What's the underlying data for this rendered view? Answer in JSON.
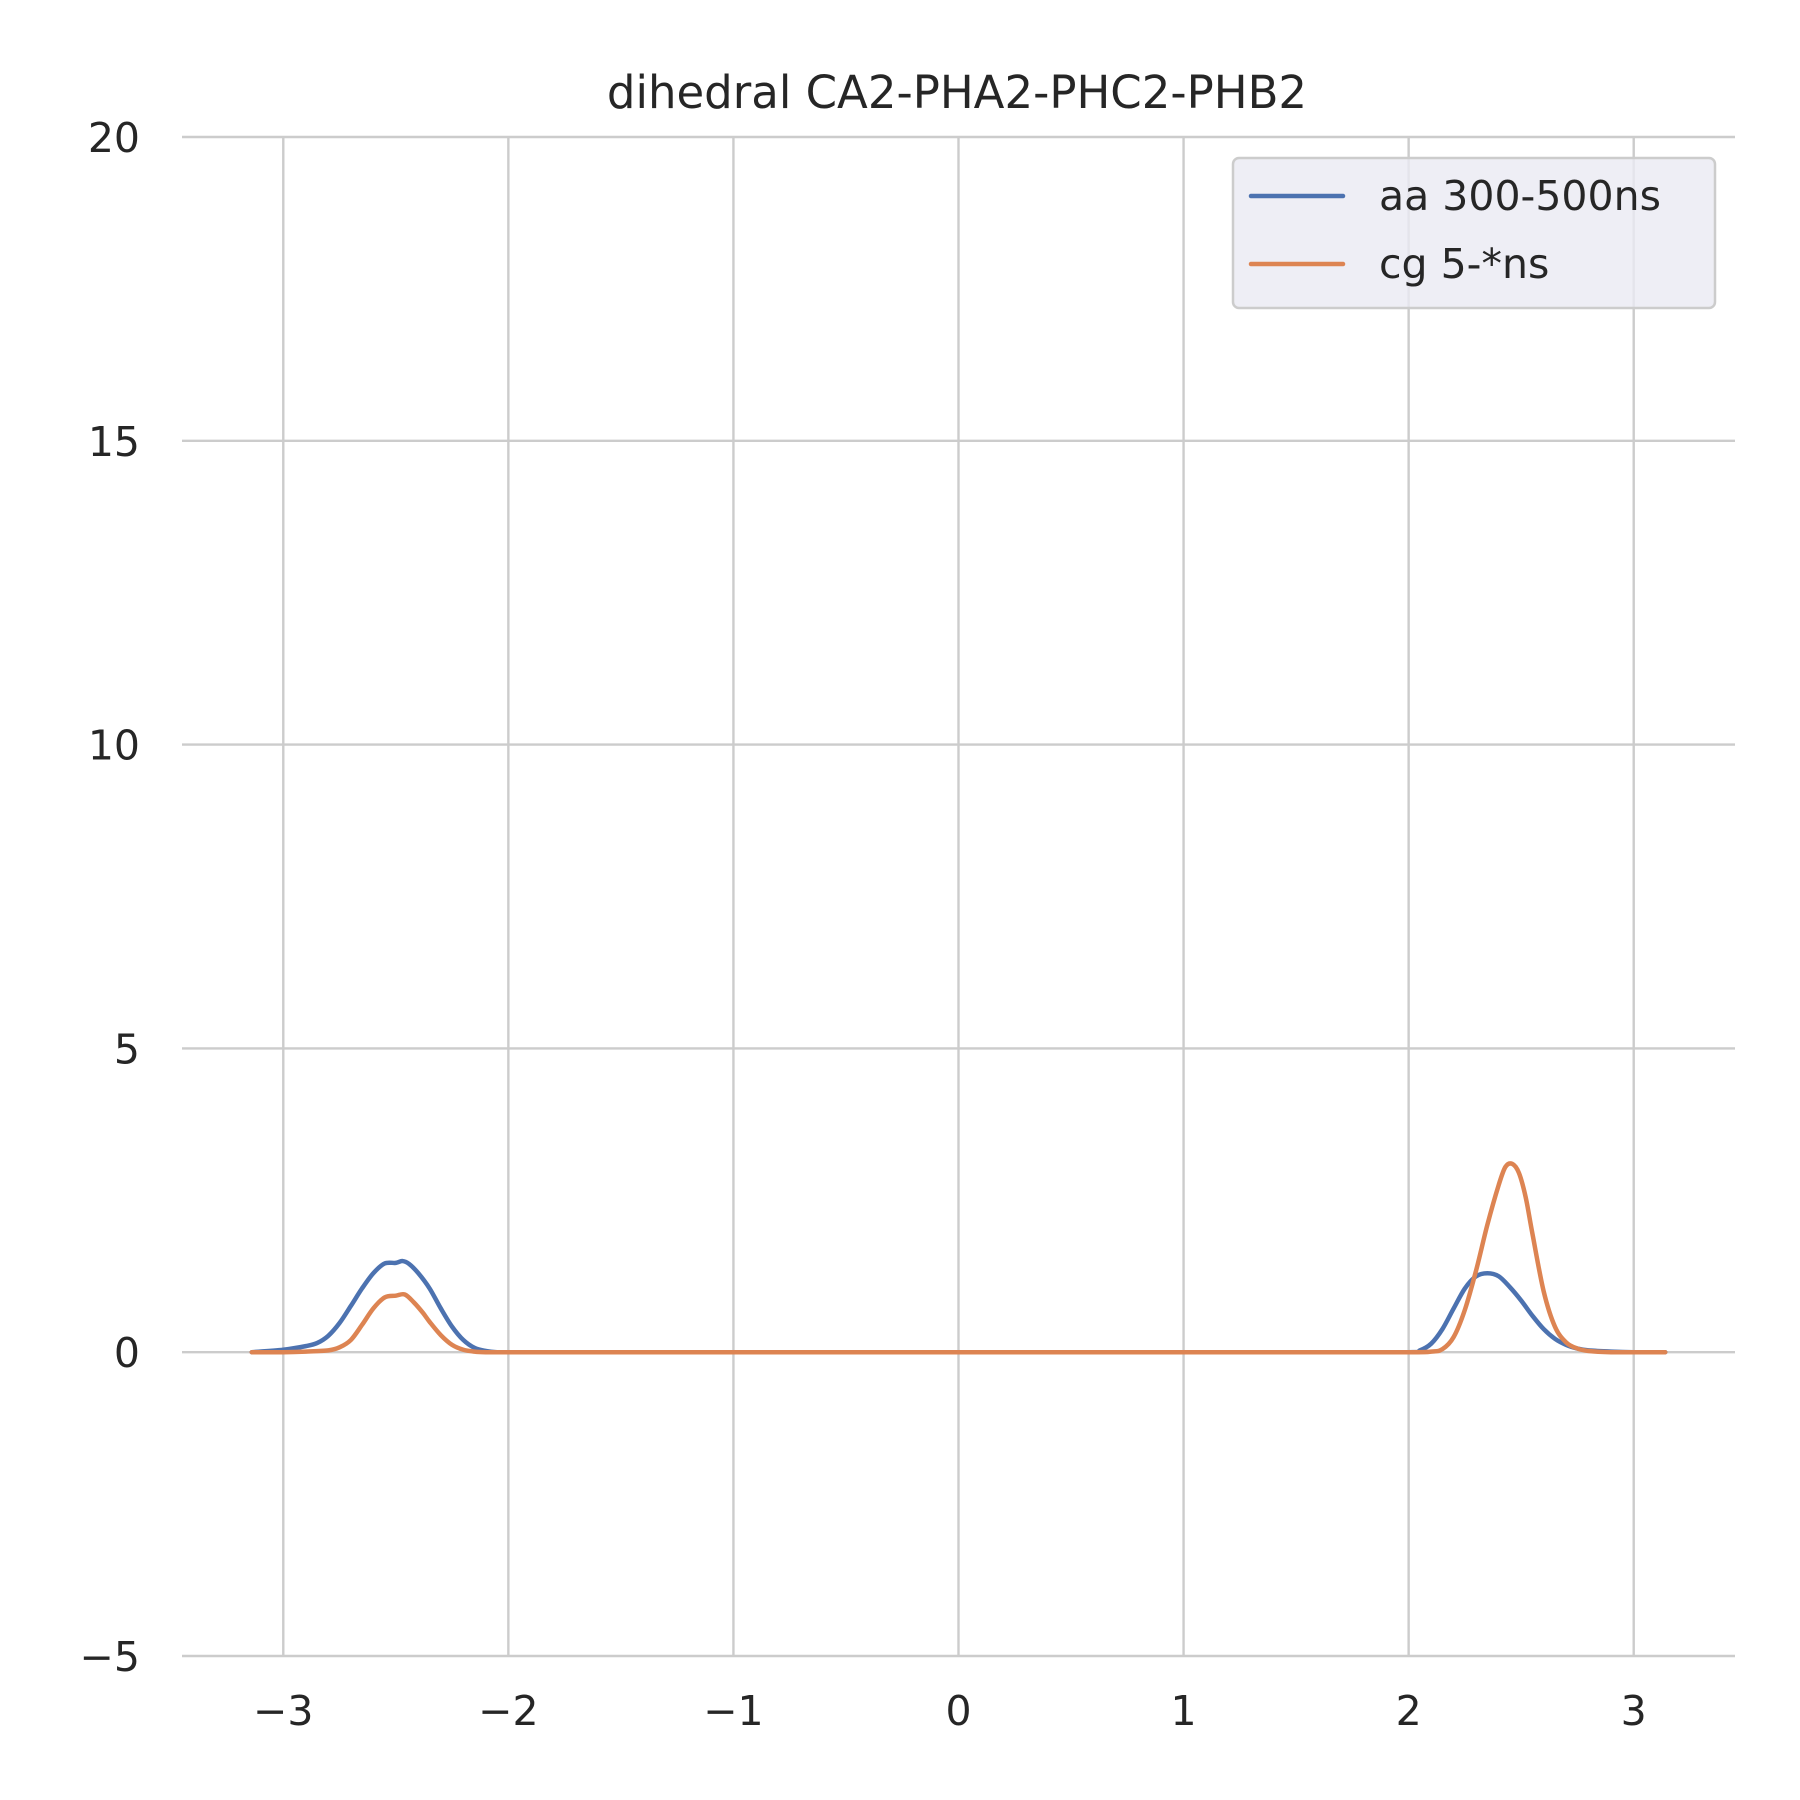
{
  "chart_data": {
    "type": "line",
    "title": "dihedral CA2-PHA2-PHC2-PHB2",
    "xlabel": "",
    "ylabel": "",
    "xlim": [
      -3.45,
      3.45
    ],
    "ylim": [
      -5,
      20
    ],
    "xticks": [
      -3,
      -2,
      -1,
      0,
      1,
      2,
      3
    ],
    "xtick_labels": [
      "−3",
      "−2",
      "−1",
      "0",
      "1",
      "2",
      "3"
    ],
    "yticks": [
      -5,
      0,
      5,
      10,
      15,
      20
    ],
    "ytick_labels": [
      "−5",
      "0",
      "5",
      "10",
      "15",
      "20"
    ],
    "grid": true,
    "legend_position": "top-right",
    "series": [
      {
        "name": "aa 300-500ns",
        "color": "#4c72b0",
        "x": [
          -3.14,
          -3.0,
          -2.9,
          -2.85,
          -2.8,
          -2.75,
          -2.7,
          -2.65,
          -2.6,
          -2.55,
          -2.5,
          -2.47,
          -2.44,
          -2.4,
          -2.35,
          -2.3,
          -2.25,
          -2.2,
          -2.15,
          -2.1,
          -2.05,
          -2.0,
          -1.5,
          -1.0,
          0.0,
          1.0,
          1.5,
          2.0,
          2.05,
          2.1,
          2.15,
          2.2,
          2.25,
          2.3,
          2.35,
          2.4,
          2.45,
          2.5,
          2.55,
          2.6,
          2.65,
          2.7,
          2.75,
          2.8,
          2.9,
          3.0,
          3.14
        ],
        "y": [
          0.0,
          0.04,
          0.1,
          0.15,
          0.27,
          0.48,
          0.76,
          1.05,
          1.3,
          1.46,
          1.47,
          1.5,
          1.45,
          1.3,
          1.05,
          0.72,
          0.42,
          0.2,
          0.07,
          0.02,
          0.0,
          0.0,
          0.0,
          0.0,
          0.0,
          0.0,
          0.0,
          0.0,
          0.03,
          0.14,
          0.38,
          0.72,
          1.05,
          1.25,
          1.3,
          1.25,
          1.07,
          0.85,
          0.6,
          0.38,
          0.22,
          0.12,
          0.06,
          0.03,
          0.01,
          0.0,
          0.0
        ]
      },
      {
        "name": "cg 5-*ns",
        "color": "#dd8452",
        "x": [
          -3.14,
          -3.0,
          -2.9,
          -2.8,
          -2.75,
          -2.7,
          -2.65,
          -2.6,
          -2.55,
          -2.5,
          -2.46,
          -2.42,
          -2.38,
          -2.35,
          -2.3,
          -2.25,
          -2.2,
          -2.15,
          -2.1,
          -2.05,
          -2.0,
          -1.5,
          -1.0,
          0.0,
          1.0,
          1.5,
          2.0,
          2.1,
          2.15,
          2.2,
          2.25,
          2.3,
          2.35,
          2.4,
          2.43,
          2.46,
          2.49,
          2.52,
          2.55,
          2.6,
          2.65,
          2.7,
          2.75,
          2.8,
          2.9,
          3.0,
          3.14
        ],
        "y": [
          0.0,
          0.0,
          0.01,
          0.03,
          0.08,
          0.2,
          0.45,
          0.72,
          0.9,
          0.93,
          0.95,
          0.82,
          0.65,
          0.5,
          0.28,
          0.12,
          0.04,
          0.01,
          0.0,
          0.0,
          0.0,
          0.0,
          0.0,
          0.0,
          0.0,
          0.0,
          0.0,
          0.01,
          0.05,
          0.25,
          0.7,
          1.35,
          2.1,
          2.75,
          3.05,
          3.1,
          2.95,
          2.55,
          1.95,
          1.0,
          0.42,
          0.16,
          0.06,
          0.02,
          0.0,
          0.0,
          0.0
        ]
      }
    ]
  }
}
